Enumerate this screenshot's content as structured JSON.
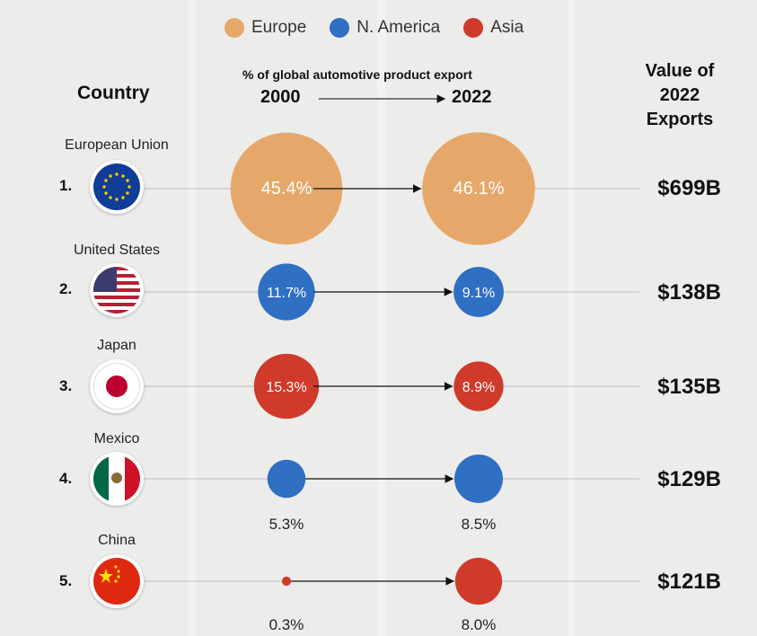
{
  "legend": [
    {
      "name": "Europe",
      "color": "#e6a86a"
    },
    {
      "name": "N. America",
      "color": "#2f6fc4"
    },
    {
      "name": "Asia",
      "color": "#cf3a2a"
    }
  ],
  "headers": {
    "country": "Country",
    "subtitle": "% of global automotive product export",
    "year_start": "2000",
    "year_end": "2022",
    "value_line1": "Value of",
    "value_line2": "2022",
    "value_line3": "Exports"
  },
  "chart_data": {
    "type": "bubble-slope",
    "title": "% of global automotive product export",
    "x_categories": [
      "2000",
      "2022"
    ],
    "rows": [
      {
        "rank": "1.",
        "country": "European Union",
        "region": "Europe",
        "share_2000": 45.4,
        "share_2022": 46.1,
        "label_2000": "45.4%",
        "label_2022": "46.1%",
        "value_2022": "$699B"
      },
      {
        "rank": "2.",
        "country": "United States",
        "region": "N. America",
        "share_2000": 11.7,
        "share_2022": 9.1,
        "label_2000": "11.7%",
        "label_2022": "9.1%",
        "value_2022": "$138B"
      },
      {
        "rank": "3.",
        "country": "Japan",
        "region": "Asia",
        "share_2000": 15.3,
        "share_2022": 8.9,
        "label_2000": "15.3%",
        "label_2022": "8.9%",
        "value_2022": "$135B"
      },
      {
        "rank": "4.",
        "country": "Mexico",
        "region": "N. America",
        "share_2000": 5.3,
        "share_2022": 8.5,
        "label_2000": "5.3%",
        "label_2022": "8.5%",
        "value_2022": "$129B"
      },
      {
        "rank": "5.",
        "country": "China",
        "region": "Asia",
        "share_2000": 0.3,
        "share_2022": 8.0,
        "label_2000": "0.3%",
        "label_2022": "8.0%",
        "value_2022": "$121B"
      }
    ]
  }
}
